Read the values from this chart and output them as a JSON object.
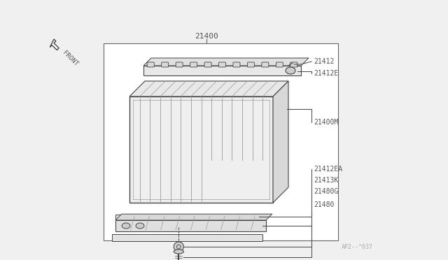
{
  "bg_color": "#f0f0f0",
  "box_bg": "#ffffff",
  "line_color": "#999999",
  "dark_line": "#444444",
  "med_line": "#666666",
  "text_color": "#555555",
  "title": "21400",
  "labels": [
    "21412",
    "21412E",
    "21400M",
    "21412EA",
    "21413K",
    "21480G",
    "21480"
  ],
  "watermark": "AP2--^037",
  "front_text": "FRONT"
}
